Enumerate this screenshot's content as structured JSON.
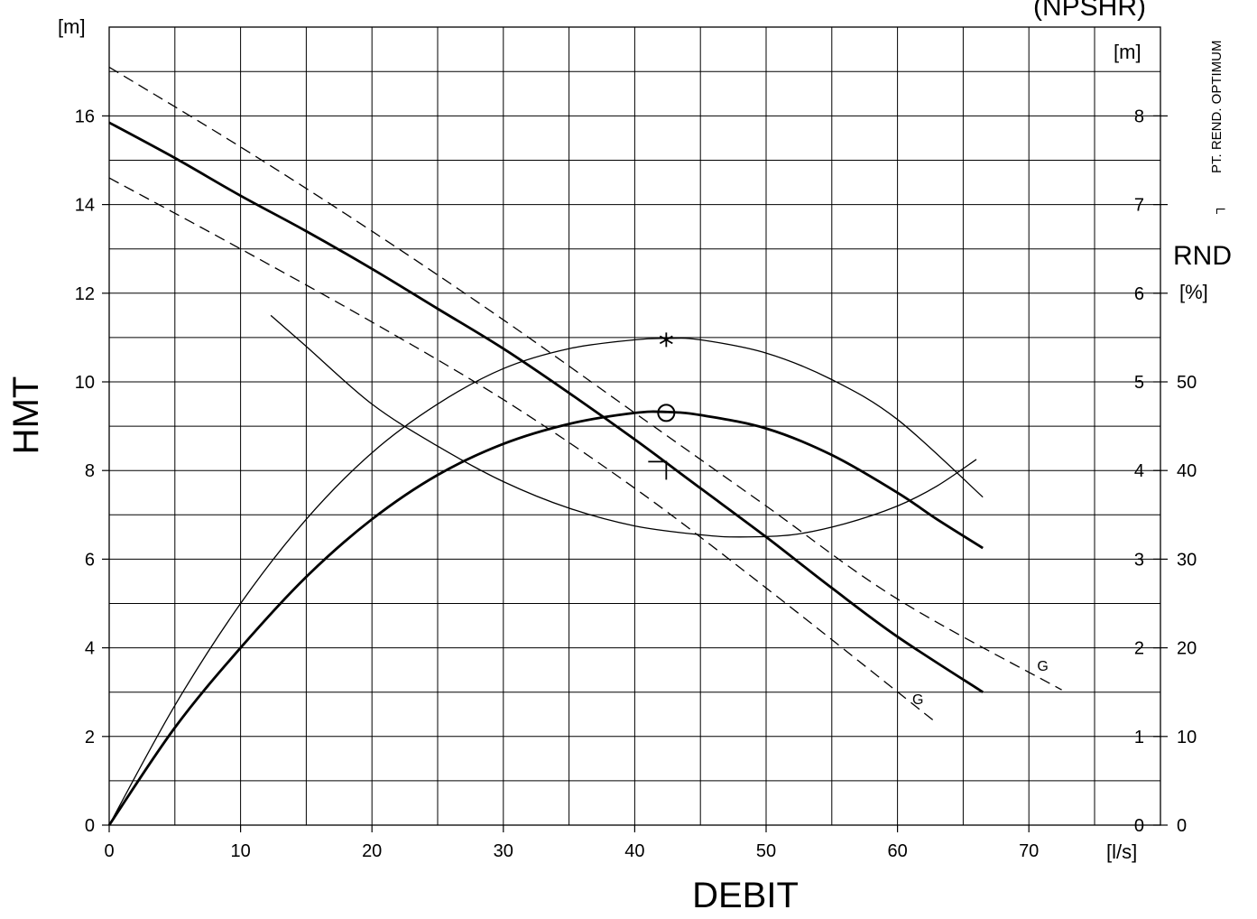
{
  "chart_data": {
    "type": "line",
    "x_unit": "[l/s]",
    "xlabel": "DEBIT",
    "xlim": [
      0,
      75
    ],
    "x_ticks": [
      "0",
      "10",
      "20",
      "30",
      "40",
      "50",
      "60",
      "70"
    ],
    "ylabel": "HMT",
    "y_unit": "[m]",
    "ylim": [
      0,
      16
    ],
    "y_ticks": [
      "0",
      "2",
      "4",
      "6",
      "8",
      "10",
      "12",
      "14",
      "16"
    ],
    "npshr_label": "(NPSHR)",
    "npshr_unit": "[m]",
    "npshr_ticks": [
      "0",
      "1",
      "2",
      "3",
      "4",
      "5",
      "6",
      "7",
      "8"
    ],
    "rnd_label": "RND",
    "rnd_unit": "[%]",
    "rnd_ticks": [
      "0",
      "10",
      "20",
      "30",
      "40",
      "50"
    ],
    "optimum_note": "PT. REND. OPTIMUM",
    "optimum_symbol": "┐",
    "grid": true,
    "series": [
      {
        "name": "",
        "style": "solid-thick",
        "x": [
          0,
          5,
          10,
          15,
          20,
          25,
          30,
          35,
          40,
          45,
          50,
          55,
          60,
          66.5
        ],
        "y": [
          15.85,
          15.05,
          14.2,
          13.4,
          12.55,
          11.65,
          10.75,
          9.75,
          8.7,
          7.6,
          6.5,
          5.35,
          4.25,
          3.0
        ]
      },
      {
        "name": "G",
        "style": "dashed",
        "x": [
          0,
          10,
          20,
          30,
          40,
          50,
          60,
          72.5
        ],
        "y": [
          17.1,
          15.3,
          13.4,
          11.4,
          9.3,
          7.2,
          5.1,
          3.05
        ]
      },
      {
        "name": "G",
        "style": "dashed",
        "x": [
          0,
          10,
          20,
          30,
          40,
          50,
          63
        ],
        "y": [
          14.6,
          13.0,
          11.35,
          9.6,
          7.6,
          5.35,
          2.3
        ]
      },
      {
        "name": "",
        "style": "solid-thick",
        "x": [
          0,
          5,
          10,
          15,
          20,
          25,
          30,
          35,
          40,
          42.5,
          45,
          50,
          55,
          60,
          63,
          66.5
        ],
        "y": [
          0,
          2.2,
          4.0,
          5.6,
          6.9,
          7.9,
          8.6,
          9.05,
          9.3,
          9.32,
          9.25,
          8.95,
          8.35,
          7.5,
          6.9,
          6.25
        ]
      },
      {
        "name": "",
        "style": "solid-thin",
        "x": [
          0,
          5,
          10,
          15,
          20,
          25,
          30,
          35,
          40,
          42.5,
          45,
          50,
          55,
          60,
          66.5
        ],
        "y": [
          0,
          2.7,
          5.0,
          6.9,
          8.4,
          9.5,
          10.3,
          10.75,
          10.95,
          10.98,
          10.95,
          10.65,
          10.05,
          9.15,
          7.4
        ]
      },
      {
        "name": "",
        "style": "solid-thin",
        "x": [
          12.3,
          15,
          20,
          25,
          30,
          35,
          40,
          45,
          48,
          52,
          56,
          60,
          63,
          66
        ],
        "y": [
          11.5,
          10.8,
          9.5,
          8.55,
          7.75,
          7.15,
          6.75,
          6.55,
          6.5,
          6.55,
          6.8,
          7.2,
          7.65,
          8.25
        ]
      }
    ],
    "markers": [
      {
        "symbol": "asterisk",
        "x": 42.4,
        "y": 10.95
      },
      {
        "symbol": "circle",
        "x": 42.4,
        "y": 9.3
      },
      {
        "symbol": "optimum",
        "x": 42.4,
        "y": 8.2
      }
    ]
  }
}
